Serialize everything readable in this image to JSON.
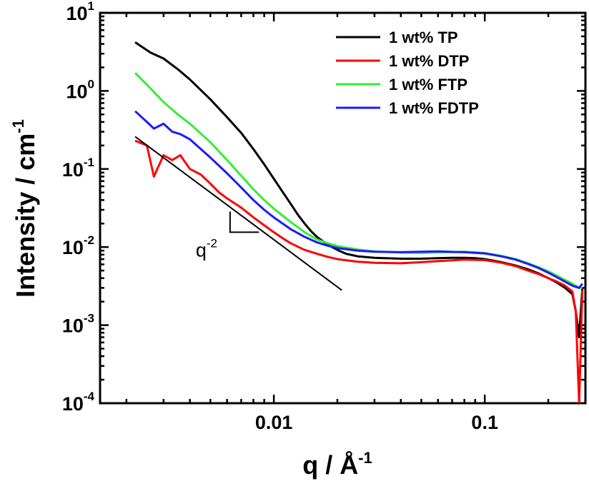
{
  "chart_data": {
    "type": "line",
    "title": "",
    "xlabel": "q / Å",
    "xlabel_exp": "-1",
    "ylabel": "Intensity / cm",
    "ylabel_exp": "-1",
    "xscale": "log",
    "yscale": "log",
    "xlim": [
      0.0015,
      0.3
    ],
    "ylim": [
      0.0001,
      10
    ],
    "x_ticks": [
      {
        "value": 0.01,
        "label": "0.01"
      },
      {
        "value": 0.1,
        "label": "0.1"
      }
    ],
    "y_ticks": [
      {
        "value": 10,
        "base": "10",
        "exp": "1"
      },
      {
        "value": 1,
        "base": "10",
        "exp": "0"
      },
      {
        "value": 0.1,
        "base": "10",
        "exp": "-1"
      },
      {
        "value": 0.01,
        "base": "10",
        "exp": "-2"
      },
      {
        "value": 0.001,
        "base": "10",
        "exp": "-3"
      },
      {
        "value": 0.0001,
        "base": "10",
        "exp": "-4"
      }
    ],
    "legend_position": "top-right",
    "series": [
      {
        "name": "1 wt% TP",
        "color": "#000000",
        "x": [
          0.0022,
          0.0026,
          0.003,
          0.0035,
          0.004,
          0.005,
          0.006,
          0.007,
          0.008,
          0.009,
          0.01,
          0.011,
          0.012,
          0.013,
          0.014,
          0.015,
          0.016,
          0.018,
          0.02,
          0.022,
          0.025,
          0.03,
          0.04,
          0.05,
          0.06,
          0.07,
          0.08,
          0.09,
          0.1,
          0.12,
          0.14,
          0.16,
          0.18,
          0.2,
          0.22,
          0.24,
          0.26,
          0.27,
          0.28,
          0.29
        ],
        "values": [
          4.2,
          3.1,
          2.6,
          1.9,
          1.4,
          0.78,
          0.46,
          0.29,
          0.18,
          0.115,
          0.075,
          0.051,
          0.036,
          0.026,
          0.02,
          0.016,
          0.0135,
          0.0107,
          0.0092,
          0.0082,
          0.0076,
          0.0073,
          0.0071,
          0.0071,
          0.0072,
          0.0073,
          0.0073,
          0.0072,
          0.007,
          0.0064,
          0.0058,
          0.0052,
          0.0046,
          0.004,
          0.0035,
          0.003,
          0.0025,
          0.0015,
          0.0007,
          0.003
        ]
      },
      {
        "name": "1 wt% DTP",
        "color": "#ff0000",
        "x": [
          0.0022,
          0.0025,
          0.0027,
          0.003,
          0.0033,
          0.0036,
          0.004,
          0.0045,
          0.005,
          0.0055,
          0.006,
          0.007,
          0.008,
          0.009,
          0.01,
          0.011,
          0.012,
          0.014,
          0.016,
          0.018,
          0.02,
          0.025,
          0.03,
          0.04,
          0.05,
          0.06,
          0.08,
          0.1,
          0.12,
          0.14,
          0.16,
          0.18,
          0.2,
          0.22,
          0.24,
          0.26,
          0.27,
          0.28,
          0.29
        ],
        "values": [
          0.23,
          0.2,
          0.08,
          0.15,
          0.13,
          0.15,
          0.1,
          0.085,
          0.065,
          0.05,
          0.042,
          0.032,
          0.024,
          0.019,
          0.0155,
          0.013,
          0.0112,
          0.0092,
          0.0082,
          0.0075,
          0.007,
          0.0065,
          0.0063,
          0.0062,
          0.0064,
          0.0066,
          0.0069,
          0.0068,
          0.0063,
          0.0057,
          0.005,
          0.0045,
          0.004,
          0.0036,
          0.0032,
          0.0027,
          0.0015,
          0.0001,
          0.0028
        ]
      },
      {
        "name": "1 wt% FTP",
        "color": "#33ee33",
        "x": [
          0.0022,
          0.0025,
          0.003,
          0.0035,
          0.004,
          0.005,
          0.006,
          0.007,
          0.008,
          0.009,
          0.01,
          0.012,
          0.014,
          0.016,
          0.018,
          0.02,
          0.025,
          0.03,
          0.04,
          0.05,
          0.06,
          0.07,
          0.08,
          0.1,
          0.12,
          0.14,
          0.16,
          0.18,
          0.2,
          0.22,
          0.24,
          0.26,
          0.28,
          0.29
        ],
        "values": [
          1.7,
          1.2,
          0.72,
          0.5,
          0.38,
          0.22,
          0.13,
          0.082,
          0.055,
          0.04,
          0.031,
          0.021,
          0.0155,
          0.0125,
          0.0112,
          0.0103,
          0.0093,
          0.0088,
          0.0085,
          0.0084,
          0.0085,
          0.0086,
          0.0087,
          0.0084,
          0.0077,
          0.007,
          0.0062,
          0.0055,
          0.0049,
          0.0043,
          0.0038,
          0.0034,
          0.003,
          0.003
        ]
      },
      {
        "name": "1 wt% FDTP",
        "color": "#1a1aff",
        "x": [
          0.0022,
          0.0025,
          0.0027,
          0.003,
          0.0033,
          0.0036,
          0.004,
          0.005,
          0.006,
          0.007,
          0.008,
          0.009,
          0.01,
          0.012,
          0.014,
          0.016,
          0.018,
          0.02,
          0.025,
          0.03,
          0.04,
          0.05,
          0.06,
          0.08,
          0.1,
          0.12,
          0.14,
          0.16,
          0.18,
          0.2,
          0.22,
          0.24,
          0.26,
          0.28,
          0.29
        ],
        "values": [
          0.55,
          0.4,
          0.33,
          0.38,
          0.3,
          0.28,
          0.24,
          0.14,
          0.088,
          0.058,
          0.04,
          0.03,
          0.024,
          0.017,
          0.0135,
          0.0115,
          0.0104,
          0.0097,
          0.009,
          0.0087,
          0.0086,
          0.0087,
          0.0088,
          0.0086,
          0.0083,
          0.0076,
          0.0069,
          0.0061,
          0.0054,
          0.0047,
          0.0041,
          0.0036,
          0.0032,
          0.003,
          0.0034
        ]
      }
    ],
    "reference_line": {
      "color": "#000000",
      "x": [
        0.0022,
        0.021
      ],
      "values": [
        0.26,
        0.0028
      ]
    },
    "slope_annotation": {
      "text": "q",
      "exponent": "-2",
      "corner": [
        0.0062,
        0.0155
      ],
      "x_end": 0.0085,
      "y_top": 0.0285
    }
  }
}
